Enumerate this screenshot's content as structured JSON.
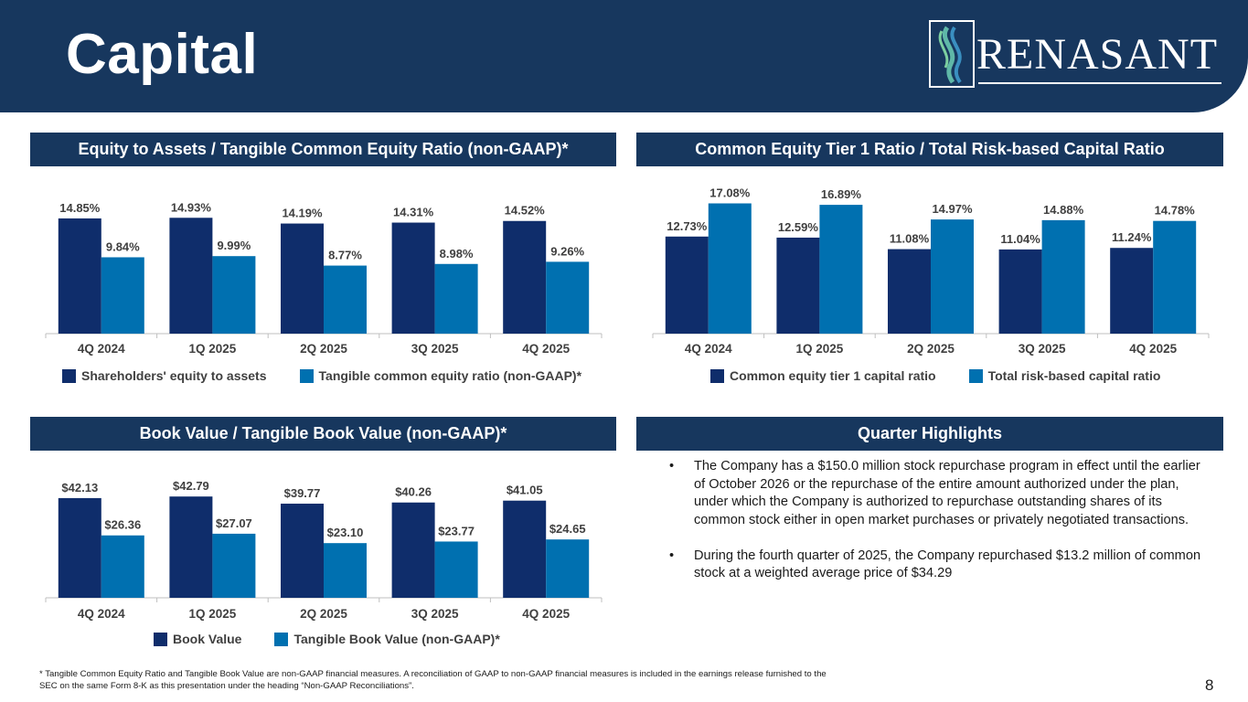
{
  "page": {
    "title": "Capital",
    "logo_text": "RENASANT",
    "page_number": "8",
    "footnote": "* Tangible Common Equity Ratio and Tangible Book Value are non-GAAP financial measures. A reconciliation of GAAP to non-GAAP financial measures is included in the earnings release furnished to the SEC on the same Form 8-K as this presentation under the heading “Non-GAAP Reconciliations”."
  },
  "colors": {
    "navy": "#17375e",
    "dark_bar": "#0f2d6b",
    "light_bar": "#0070b0",
    "axis": "#bfbfbf"
  },
  "highlights": {
    "title": "Quarter Highlights",
    "items": [
      "The Company has a $150.0 million stock repurchase program in effect until the earlier of October 2026 or the repurchase of the entire amount authorized under the plan, under which the Company is authorized to repurchase outstanding shares of its common stock either in open market purchases or privately negotiated transactions.",
      "During the fourth quarter of 2025, the Company repurchased $13.2 million of common stock at a weighted average price of $34.29"
    ]
  },
  "chart_data": [
    {
      "type": "bar",
      "title": "Equity to Assets / Tangible Common Equity Ratio (non-GAAP)*",
      "categories": [
        "4Q 2024",
        "1Q 2025",
        "2Q 2025",
        "3Q 2025",
        "4Q 2025"
      ],
      "series": [
        {
          "name": "Shareholders' equity to assets",
          "values": [
            14.85,
            14.93,
            14.19,
            14.31,
            14.52
          ],
          "labels": [
            "14.85%",
            "14.93%",
            "14.19%",
            "14.31%",
            "14.52%"
          ],
          "color": "#0f2d6b"
        },
        {
          "name": "Tangible common equity ratio (non-GAAP)*",
          "values": [
            9.84,
            9.99,
            8.77,
            8.98,
            9.26
          ],
          "labels": [
            "9.84%",
            "9.99%",
            "8.77%",
            "8.98%",
            "9.26%"
          ],
          "color": "#0070b0"
        }
      ],
      "ylim": [
        0,
        17.2
      ],
      "grid": false,
      "legend": "bottom"
    },
    {
      "type": "bar",
      "title": "Common Equity Tier 1 Ratio / Total Risk-based Capital Ratio",
      "categories": [
        "4Q 2024",
        "1Q 2025",
        "2Q 2025",
        "3Q 2025",
        "4Q 2025"
      ],
      "series": [
        {
          "name": "Common equity tier 1 capital ratio",
          "values": [
            12.73,
            12.59,
            11.08,
            11.04,
            11.24
          ],
          "labels": [
            "12.73%",
            "12.59%",
            "11.08%",
            "11.04%",
            "11.24%"
          ],
          "color": "#0f2d6b"
        },
        {
          "name": "Total risk-based capital ratio",
          "values": [
            17.08,
            16.89,
            14.97,
            14.88,
            14.78
          ],
          "labels": [
            "17.08%",
            "16.89%",
            "14.97%",
            "14.88%",
            "14.78%"
          ],
          "color": "#0070b0"
        }
      ],
      "ylim": [
        0,
        17.5
      ],
      "grid": false,
      "legend": "bottom"
    },
    {
      "type": "bar",
      "title": "Book Value / Tangible Book Value (non-GAAP)*",
      "categories": [
        "4Q 2024",
        "1Q 2025",
        "2Q 2025",
        "3Q 2025",
        "4Q 2025"
      ],
      "series": [
        {
          "name": "Book Value",
          "values": [
            42.13,
            42.79,
            39.77,
            40.26,
            41.05
          ],
          "labels": [
            "$42.13",
            "$42.79",
            "$39.77",
            "$40.26",
            "$41.05"
          ],
          "color": "#0f2d6b"
        },
        {
          "name": "Tangible Book Value (non-GAAP)*",
          "values": [
            26.36,
            27.07,
            23.1,
            23.77,
            24.65
          ],
          "labels": [
            "$26.36",
            "$27.07",
            "$23.10",
            "$23.77",
            "$24.65"
          ],
          "color": "#0070b0"
        }
      ],
      "ylim": [
        0,
        47.5
      ],
      "grid": false,
      "legend": "bottom"
    }
  ]
}
